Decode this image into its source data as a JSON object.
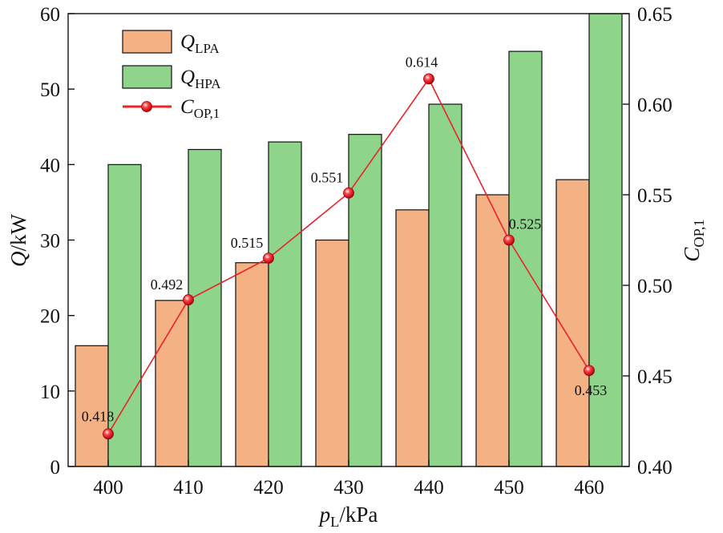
{
  "chart_data": {
    "type": "bar",
    "categories": [
      "400",
      "410",
      "420",
      "430",
      "440",
      "450",
      "460"
    ],
    "series": [
      {
        "name": "Q_LPA",
        "kind": "bar",
        "axis": "left",
        "values": [
          16,
          22,
          27,
          30,
          34,
          36,
          38
        ],
        "color": "#f4b183"
      },
      {
        "name": "Q_HPA",
        "kind": "bar",
        "axis": "left",
        "values": [
          40,
          42,
          43,
          44,
          48,
          55,
          60
        ],
        "color": "#8fd48b"
      },
      {
        "name": "C_OP,1",
        "kind": "line",
        "axis": "right",
        "values": [
          0.418,
          0.492,
          0.515,
          0.551,
          0.614,
          0.525,
          0.453
        ],
        "color": "#e8232b",
        "labels": [
          "0.418",
          "0.492",
          "0.515",
          "0.551",
          "0.614",
          "0.525",
          "0.453"
        ]
      }
    ],
    "xlabel": {
      "main": "p",
      "sub": "L",
      "rest": "/kPa"
    },
    "ylabel_left": {
      "main": "Q",
      "rest": "/kW"
    },
    "ylabel_right": {
      "main": "C",
      "sub": "OP,1"
    },
    "ylim_left": [
      0,
      60
    ],
    "ylim_right": [
      0.4,
      0.65
    ],
    "yticks_left": [
      "0",
      "10",
      "20",
      "30",
      "40",
      "50",
      "60"
    ],
    "yticks_right": [
      "0.40",
      "0.45",
      "0.50",
      "0.55",
      "0.60",
      "0.65"
    ],
    "legend": [
      {
        "main": "Q",
        "sub": "LPA",
        "kind": "bar",
        "color": "#f4b183"
      },
      {
        "main": "Q",
        "sub": "HPA",
        "kind": "bar",
        "color": "#8fd48b"
      },
      {
        "main": "C",
        "sub": "OP,1",
        "kind": "line",
        "color": "#e8232b"
      }
    ],
    "legend_position": "top-left",
    "grid": false
  }
}
